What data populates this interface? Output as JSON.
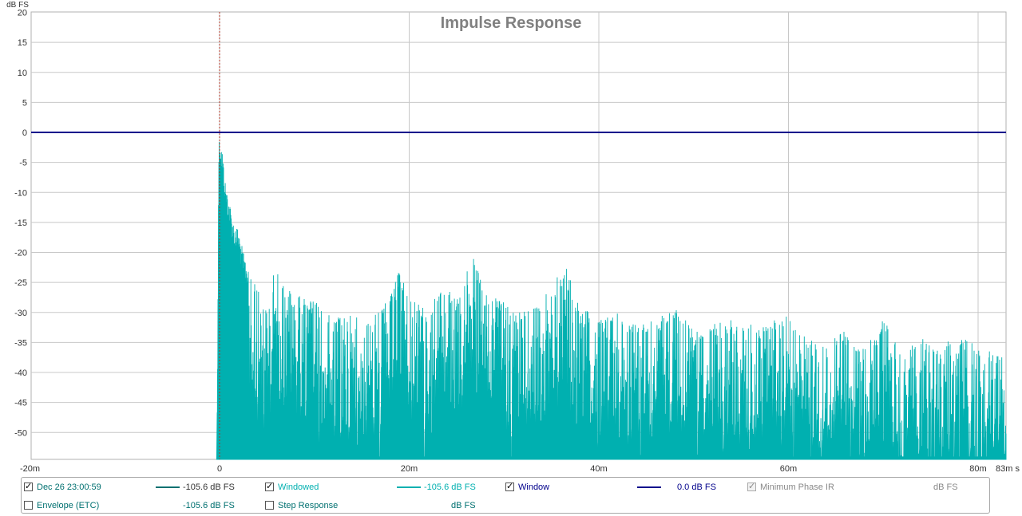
{
  "chart_data": {
    "type": "area",
    "title": "Impulse Response",
    "ylabel": "dB FS",
    "x_unit": "s",
    "xlim": [
      -0.02,
      0.083
    ],
    "ylim": [
      -54,
      20
    ],
    "xticks": [
      {
        "value": -0.02,
        "label": "-20m"
      },
      {
        "value": 0,
        "label": "0"
      },
      {
        "value": 0.02,
        "label": "20m"
      },
      {
        "value": 0.04,
        "label": "40m"
      },
      {
        "value": 0.06,
        "label": "60m"
      },
      {
        "value": 0.08,
        "label": "80m"
      },
      {
        "value": 0.083,
        "label": "83m s"
      }
    ],
    "yticks": [
      20,
      15,
      10,
      5,
      0,
      -5,
      -10,
      -15,
      -20,
      -25,
      -30,
      -35,
      -40,
      -45,
      -50
    ],
    "grid": true,
    "cursor_x": 0,
    "series": [
      {
        "name": "Windowed",
        "color": "#00b0b0",
        "envelope_points": [
          [
            -0.0003,
            -54
          ],
          [
            -0.0002,
            -35
          ],
          [
            -0.0001,
            -3
          ],
          [
            0,
            0
          ],
          [
            0.0003,
            -3
          ],
          [
            0.0006,
            -8
          ],
          [
            0.001,
            -11
          ],
          [
            0.0015,
            -15
          ],
          [
            0.002,
            -16
          ],
          [
            0.0025,
            -20
          ],
          [
            0.003,
            -22
          ],
          [
            0.004,
            -26
          ],
          [
            0.005,
            -30
          ],
          [
            0.0058,
            -22
          ],
          [
            0.007,
            -25
          ],
          [
            0.008,
            -27
          ],
          [
            0.01,
            -28
          ],
          [
            0.012,
            -31
          ],
          [
            0.014,
            -30
          ],
          [
            0.016,
            -31
          ],
          [
            0.018,
            -27
          ],
          [
            0.0188,
            -23
          ],
          [
            0.02,
            -27
          ],
          [
            0.022,
            -30
          ],
          [
            0.0235,
            -25
          ],
          [
            0.025,
            -28
          ],
          [
            0.0265,
            -19
          ],
          [
            0.028,
            -27
          ],
          [
            0.03,
            -28
          ],
          [
            0.032,
            -30
          ],
          [
            0.034,
            -28
          ],
          [
            0.0365,
            -22
          ],
          [
            0.038,
            -29
          ],
          [
            0.04,
            -31
          ],
          [
            0.042,
            -30
          ],
          [
            0.044,
            -32
          ],
          [
            0.046,
            -31
          ],
          [
            0.048,
            -29
          ],
          [
            0.05,
            -33
          ],
          [
            0.052,
            -32
          ],
          [
            0.054,
            -31
          ],
          [
            0.056,
            -32
          ],
          [
            0.0595,
            -30
          ],
          [
            0.062,
            -34
          ],
          [
            0.064,
            -35
          ],
          [
            0.066,
            -33
          ],
          [
            0.068,
            -36
          ],
          [
            0.07,
            -31
          ],
          [
            0.072,
            -37
          ],
          [
            0.074,
            -34
          ],
          [
            0.076,
            -36
          ],
          [
            0.078,
            -33
          ],
          [
            0.08,
            -36
          ],
          [
            0.083,
            -37
          ]
        ]
      },
      {
        "name": "Window",
        "color": "#00008b",
        "y": 0
      }
    ]
  },
  "legend": {
    "items": [
      {
        "label": "Dec 26 23:00:59",
        "value": "-105.6 dB FS",
        "checked": true,
        "color": "#007070"
      },
      {
        "label": "Windowed",
        "value": "-105.6 dB FS",
        "checked": true,
        "color": "#00b0b0"
      },
      {
        "label": "Window",
        "value": "0.0 dB FS",
        "checked": true,
        "color": "#00008b"
      },
      {
        "label": "Minimum Phase IR",
        "value": "dB FS",
        "checked": true,
        "disabled": true,
        "color": "#888888"
      },
      {
        "label": "Envelope (ETC)",
        "value": "-105.6 dB FS",
        "checked": false,
        "color": "#007070"
      },
      {
        "label": "Step Response",
        "value": "dB FS",
        "checked": false,
        "color": "#007070"
      }
    ]
  }
}
